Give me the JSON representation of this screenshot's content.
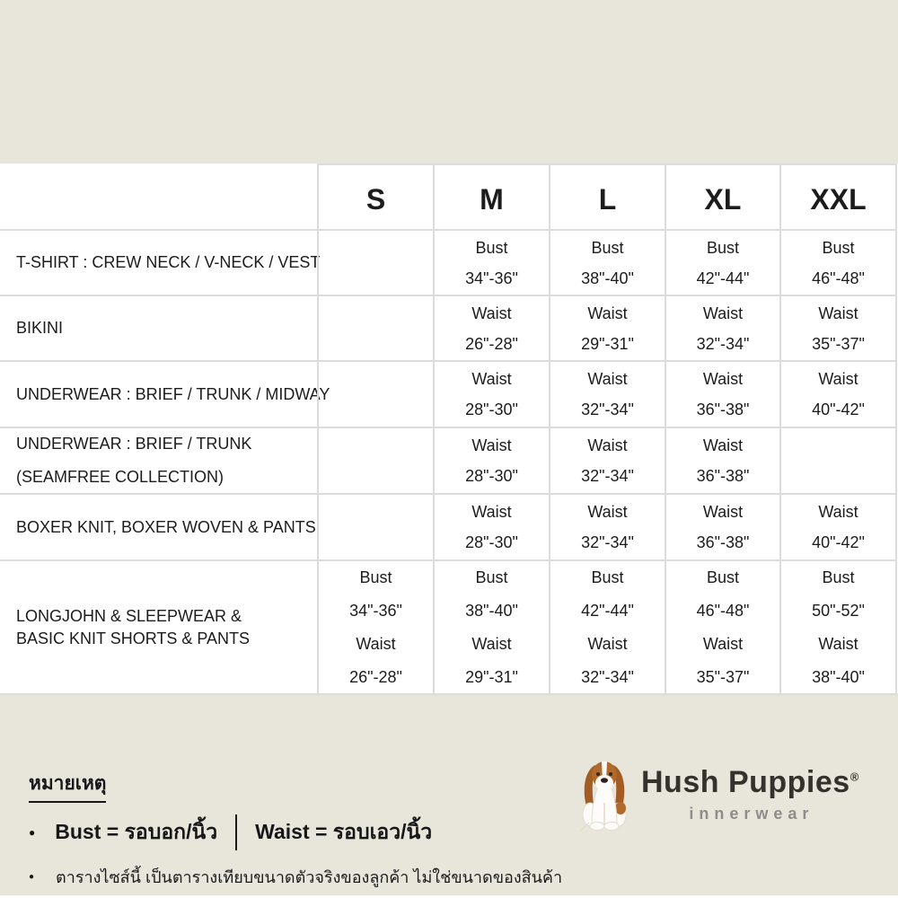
{
  "page": {
    "background_color": "#e8e5db",
    "table_background_color": "#ffffff",
    "grid_line_color": "#dcdcdc"
  },
  "size_chart": {
    "columns": [
      "",
      "S",
      "M",
      "L",
      "XL",
      "XXL"
    ],
    "rows": [
      {
        "label_lines": [
          "T-SHIRT : CREW NECK / V-NECK / VEST"
        ],
        "cells": [
          [],
          [
            "Bust",
            "34\"-36\""
          ],
          [
            "Bust",
            "38\"-40\""
          ],
          [
            "Bust",
            "42\"-44\""
          ],
          [
            "Bust",
            "46\"-48\""
          ]
        ]
      },
      {
        "label_lines": [
          "BIKINI"
        ],
        "cells": [
          [],
          [
            "Waist",
            "26\"-28\""
          ],
          [
            "Waist",
            "29\"-31\""
          ],
          [
            "Waist",
            "32\"-34\""
          ],
          [
            "Waist",
            "35\"-37\""
          ]
        ]
      },
      {
        "label_lines": [
          "UNDERWEAR : BRIEF / TRUNK / MIDWAY"
        ],
        "cells": [
          [],
          [
            "Waist",
            "28\"-30\""
          ],
          [
            "Waist",
            "32\"-34\""
          ],
          [
            "Waist",
            "36\"-38\""
          ],
          [
            "Waist",
            "40\"-42\""
          ]
        ]
      },
      {
        "label_lines": [
          "UNDERWEAR : BRIEF / TRUNK",
          "(SEAMFREE COLLECTION)"
        ],
        "cells": [
          [],
          [
            "Waist",
            "28\"-30\""
          ],
          [
            "Waist",
            "32\"-34\""
          ],
          [
            "Waist",
            "36\"-38\""
          ],
          []
        ]
      },
      {
        "label_lines": [
          "BOXER KNIT, BOXER WOVEN & PANTS"
        ],
        "cells": [
          [],
          [
            "Waist",
            "28\"-30\""
          ],
          [
            "Waist",
            "32\"-34\""
          ],
          [
            "Waist",
            "36\"-38\""
          ],
          [
            "Waist",
            "40\"-42\""
          ]
        ]
      },
      {
        "label_lines": [
          "LONGJOHN & SLEEPWEAR &",
          "BASIC KNIT SHORTS & PANTS"
        ],
        "cells": [
          [
            "Bust",
            "34\"-36\"",
            "Waist",
            "26\"-28\""
          ],
          [
            "Bust",
            "38\"-40\"",
            "Waist",
            "29\"-31\""
          ],
          [
            "Bust",
            "42\"-44\"",
            "Waist",
            "32\"-34\""
          ],
          [
            "Bust",
            "46\"-48\"",
            "Waist",
            "35\"-37\""
          ],
          [
            "Bust",
            "50\"-52\"",
            "Waist",
            "38\"-40\""
          ]
        ]
      }
    ]
  },
  "notes": {
    "heading": "หมายเหตุ",
    "bullet_icon": "●",
    "bust_legend": "Bust = รอบอก/นิ้ว",
    "waist_legend": "Waist = รอบเอว/นิ้ว",
    "disclaimer": "ตารางไซส์นี้ เป็นตารางเทียบขนาดตัวจริงของลูกค้า ไม่ใช่ขนาดของสินค้า"
  },
  "brand": {
    "name": "Hush Puppies",
    "registered_mark": "®",
    "subtitle": "innerwear",
    "logo_icon": "basset-hound-dog",
    "name_color": "#35322d",
    "subtitle_color": "#8e8d8b"
  }
}
